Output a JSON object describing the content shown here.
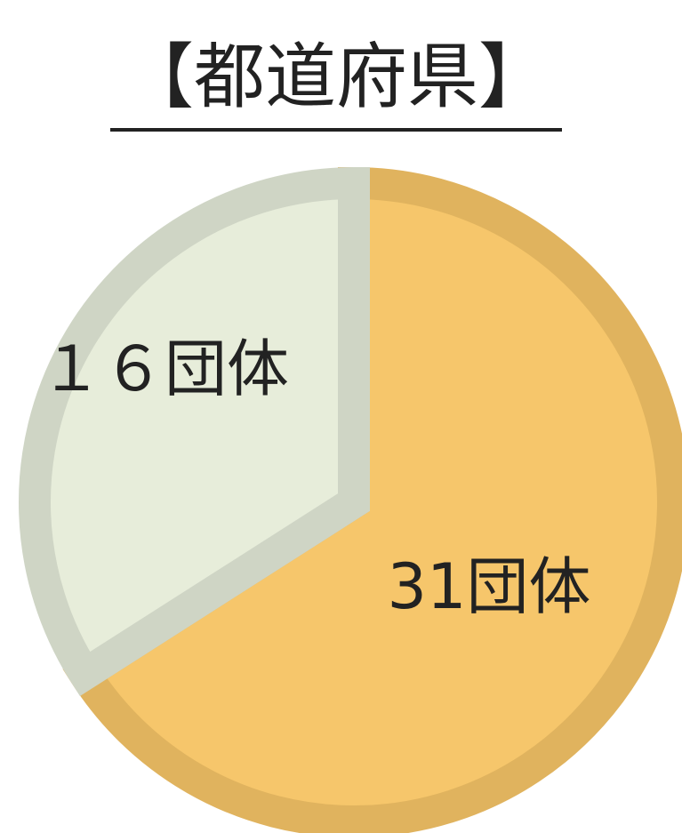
{
  "chart_data": {
    "type": "pie",
    "title": "【都道府県】",
    "values": [
      31,
      16
    ],
    "value_labels": [
      "31団体",
      "１６団体"
    ],
    "colors": [
      "#f6c66b",
      "#e7edda"
    ],
    "edge_colors": [
      "#e0b35e",
      "#cfd5c5"
    ]
  }
}
